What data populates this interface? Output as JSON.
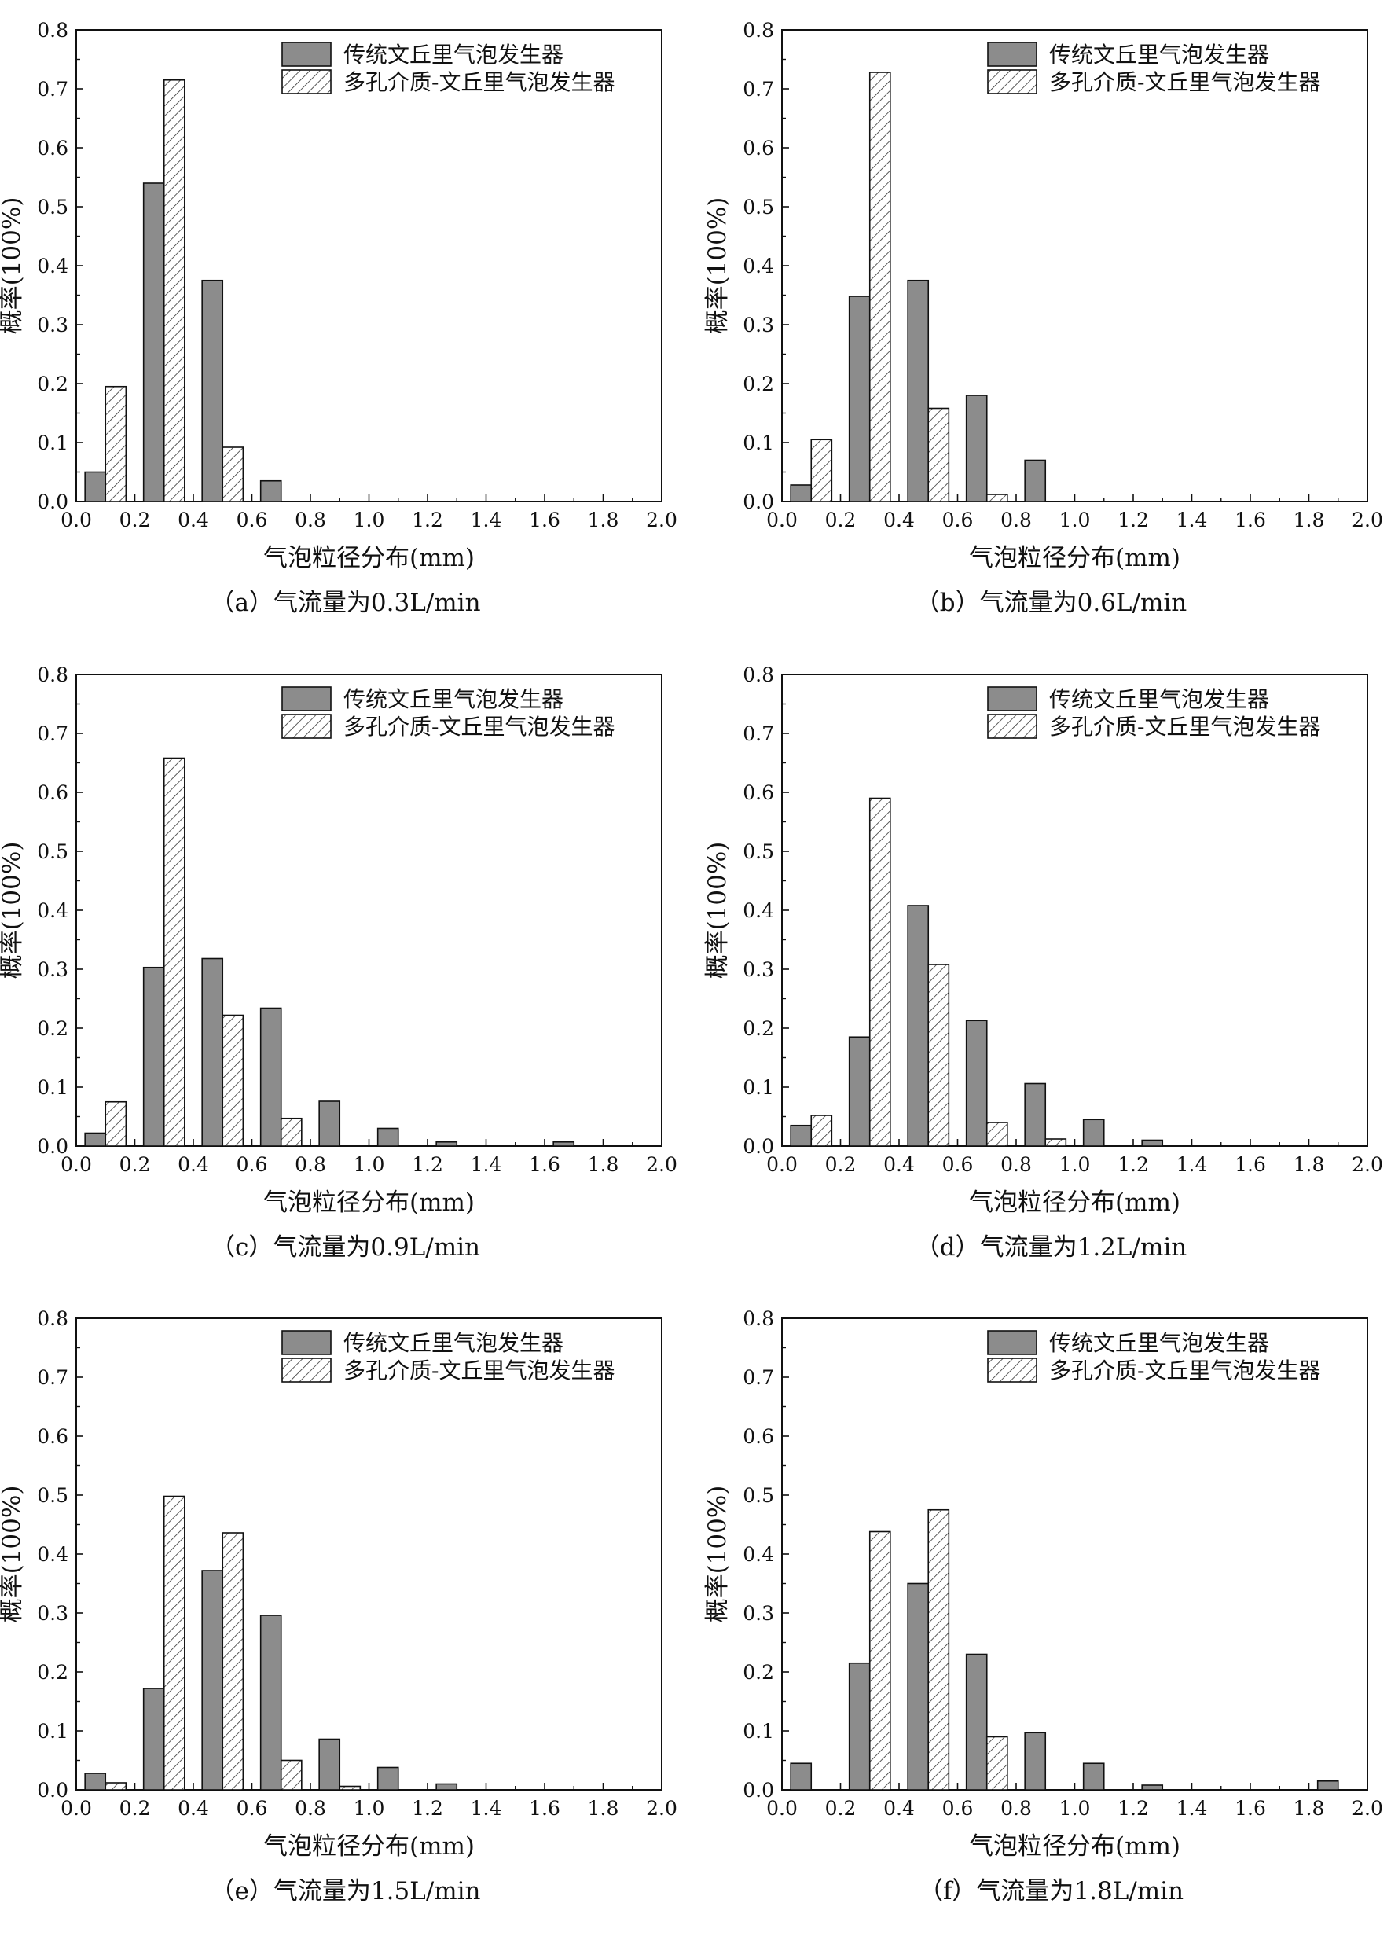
{
  "figure": {
    "legend": [
      "传统文丘里气泡发生器",
      "多孔介质-文丘里气泡发生器"
    ],
    "colors": {
      "solid_fill": "#8c8c8c",
      "hatch_line": "#333333",
      "frame": "#111111",
      "background": "#ffffff"
    }
  },
  "chart_data": [
    {
      "type": "bar",
      "caption": "（a）气流量为0.3L/min",
      "xlabel": "气泡粒径分布(mm)",
      "ylabel": "概率(100%)",
      "xlim": [
        0.0,
        2.0
      ],
      "ylim": [
        0.0,
        0.8
      ],
      "xticks": [
        "0.0",
        "0.2",
        "0.4",
        "0.6",
        "0.8",
        "1.0",
        "1.2",
        "1.4",
        "1.6",
        "1.8",
        "2.0"
      ],
      "yticks": [
        "0.0",
        "0.1",
        "0.2",
        "0.3",
        "0.4",
        "0.5",
        "0.6",
        "0.7",
        "0.8"
      ],
      "bins": [
        0.1,
        0.3,
        0.5,
        0.7,
        0.9,
        1.1,
        1.3,
        1.5,
        1.7,
        1.9
      ],
      "series": [
        {
          "name": "传统文丘里气泡发生器",
          "style": "solid",
          "values": [
            0.05,
            0.54,
            0.375,
            0.035,
            0,
            0,
            0,
            0,
            0,
            0
          ]
        },
        {
          "name": "多孔介质-文丘里气泡发生器",
          "style": "hatched",
          "values": [
            0.195,
            0.715,
            0.092,
            0,
            0,
            0,
            0,
            0,
            0,
            0
          ]
        }
      ]
    },
    {
      "type": "bar",
      "caption": "（b）气流量为0.6L/min",
      "xlabel": "气泡粒径分布(mm)",
      "ylabel": "概率(100%)",
      "xlim": [
        0.0,
        2.0
      ],
      "ylim": [
        0.0,
        0.8
      ],
      "xticks": [
        "0.0",
        "0.2",
        "0.4",
        "0.6",
        "0.8",
        "1.0",
        "1.2",
        "1.4",
        "1.6",
        "1.8",
        "2.0"
      ],
      "yticks": [
        "0.0",
        "0.1",
        "0.2",
        "0.3",
        "0.4",
        "0.5",
        "0.6",
        "0.7",
        "0.8"
      ],
      "bins": [
        0.1,
        0.3,
        0.5,
        0.7,
        0.9,
        1.1,
        1.3,
        1.5,
        1.7,
        1.9
      ],
      "series": [
        {
          "name": "传统文丘里气泡发生器",
          "style": "solid",
          "values": [
            0.028,
            0.348,
            0.375,
            0.18,
            0.07,
            0,
            0,
            0,
            0,
            0
          ]
        },
        {
          "name": "多孔介质-文丘里气泡发生器",
          "style": "hatched",
          "values": [
            0.105,
            0.728,
            0.158,
            0.012,
            0,
            0,
            0,
            0,
            0,
            0
          ]
        }
      ]
    },
    {
      "type": "bar",
      "caption": "（c）气流量为0.9L/min",
      "xlabel": "气泡粒径分布(mm)",
      "ylabel": "概率(100%)",
      "xlim": [
        0.0,
        2.0
      ],
      "ylim": [
        0.0,
        0.8
      ],
      "xticks": [
        "0.0",
        "0.2",
        "0.4",
        "0.6",
        "0.8",
        "1.0",
        "1.2",
        "1.4",
        "1.6",
        "1.8",
        "2.0"
      ],
      "yticks": [
        "0.0",
        "0.1",
        "0.2",
        "0.3",
        "0.4",
        "0.5",
        "0.6",
        "0.7",
        "0.8"
      ],
      "bins": [
        0.1,
        0.3,
        0.5,
        0.7,
        0.9,
        1.1,
        1.3,
        1.5,
        1.7,
        1.9
      ],
      "series": [
        {
          "name": "传统文丘里气泡发生器",
          "style": "solid",
          "values": [
            0.022,
            0.303,
            0.318,
            0.234,
            0.076,
            0.03,
            0.007,
            0,
            0.007,
            0
          ]
        },
        {
          "name": "多孔介质-文丘里气泡发生器",
          "style": "hatched",
          "values": [
            0.075,
            0.658,
            0.222,
            0.047,
            0,
            0,
            0,
            0,
            0,
            0
          ]
        }
      ]
    },
    {
      "type": "bar",
      "caption": "（d）气流量为1.2L/min",
      "xlabel": "气泡粒径分布(mm)",
      "ylabel": "概率(100%)",
      "xlim": [
        0.0,
        2.0
      ],
      "ylim": [
        0.0,
        0.8
      ],
      "xticks": [
        "0.0",
        "0.2",
        "0.4",
        "0.6",
        "0.8",
        "1.0",
        "1.2",
        "1.4",
        "1.6",
        "1.8",
        "2.0"
      ],
      "yticks": [
        "0.0",
        "0.1",
        "0.2",
        "0.3",
        "0.4",
        "0.5",
        "0.6",
        "0.7",
        "0.8"
      ],
      "bins": [
        0.1,
        0.3,
        0.5,
        0.7,
        0.9,
        1.1,
        1.3,
        1.5,
        1.7,
        1.9
      ],
      "series": [
        {
          "name": "传统文丘里气泡发生器",
          "style": "solid",
          "values": [
            0.035,
            0.185,
            0.408,
            0.213,
            0.106,
            0.045,
            0.01,
            0,
            0,
            0
          ]
        },
        {
          "name": "多孔介质-文丘里气泡发生器",
          "style": "hatched",
          "values": [
            0.052,
            0.59,
            0.308,
            0.04,
            0.012,
            0,
            0,
            0,
            0,
            0
          ]
        }
      ]
    },
    {
      "type": "bar",
      "caption": "（e）气流量为1.5L/min",
      "xlabel": "气泡粒径分布(mm)",
      "ylabel": "概率(100%)",
      "xlim": [
        0.0,
        2.0
      ],
      "ylim": [
        0.0,
        0.8
      ],
      "xticks": [
        "0.0",
        "0.2",
        "0.4",
        "0.6",
        "0.8",
        "1.0",
        "1.2",
        "1.4",
        "1.6",
        "1.8",
        "2.0"
      ],
      "yticks": [
        "0.0",
        "0.1",
        "0.2",
        "0.3",
        "0.4",
        "0.5",
        "0.6",
        "0.7",
        "0.8"
      ],
      "bins": [
        0.1,
        0.3,
        0.5,
        0.7,
        0.9,
        1.1,
        1.3,
        1.5,
        1.7,
        1.9
      ],
      "series": [
        {
          "name": "传统文丘里气泡发生器",
          "style": "solid",
          "values": [
            0.028,
            0.172,
            0.372,
            0.296,
            0.086,
            0.038,
            0.01,
            0,
            0,
            0
          ]
        },
        {
          "name": "多孔介质-文丘里气泡发生器",
          "style": "hatched",
          "values": [
            0.012,
            0.498,
            0.436,
            0.05,
            0.006,
            0,
            0,
            0,
            0,
            0
          ]
        }
      ]
    },
    {
      "type": "bar",
      "caption": "（f）气流量为1.8L/min",
      "xlabel": "气泡粒径分布(mm)",
      "ylabel": "概率(100%)",
      "xlim": [
        0.0,
        2.0
      ],
      "ylim": [
        0.0,
        0.8
      ],
      "xticks": [
        "0.0",
        "0.2",
        "0.4",
        "0.6",
        "0.8",
        "1.0",
        "1.2",
        "1.4",
        "1.6",
        "1.8",
        "2.0"
      ],
      "yticks": [
        "0.0",
        "0.1",
        "0.2",
        "0.3",
        "0.4",
        "0.5",
        "0.6",
        "0.7",
        "0.8"
      ],
      "bins": [
        0.1,
        0.3,
        0.5,
        0.7,
        0.9,
        1.1,
        1.3,
        1.5,
        1.7,
        1.9
      ],
      "series": [
        {
          "name": "传统文丘里气泡发生器",
          "style": "solid",
          "values": [
            0.045,
            0.215,
            0.35,
            0.23,
            0.097,
            0.045,
            0.008,
            0,
            0,
            0.015
          ]
        },
        {
          "name": "多孔介质-文丘里气泡发生器",
          "style": "hatched",
          "values": [
            0,
            0.438,
            0.475,
            0.09,
            0,
            0,
            0,
            0,
            0,
            0
          ]
        }
      ]
    }
  ]
}
